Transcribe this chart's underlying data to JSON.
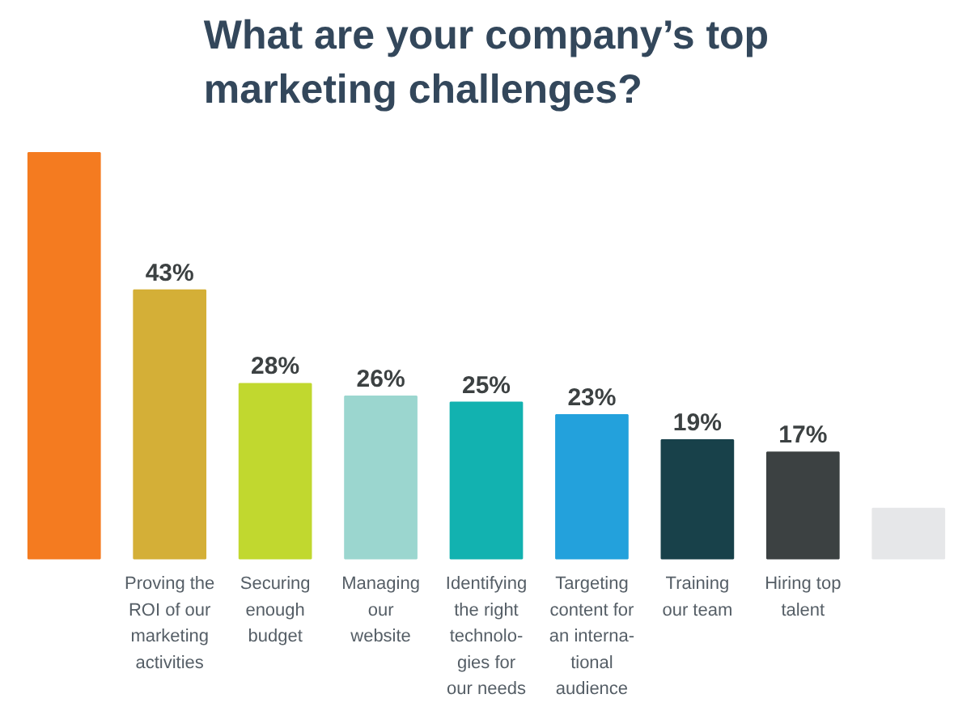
{
  "chart_data": {
    "type": "bar",
    "title": "What are your company’s top\nmarketing challenges?",
    "categories": [
      null,
      "Proving the\nROI of our\nmarketing\nactivities",
      "Securing\nenough\nbudget",
      "Managing\nour\nwebsite",
      "Identifying\nthe right\ntechnolo-\ngies for\nour needs",
      "Targeting\ncontent for\nan interna-\ntional\naudience",
      "Training\nour team",
      "Hiring top\ntalent",
      null
    ],
    "values": [
      65,
      43,
      28,
      26,
      25,
      23,
      19,
      17,
      8
    ],
    "value_labels": [
      null,
      "43%",
      "28%",
      "26%",
      "25%",
      "23%",
      "19%",
      "17%",
      null
    ],
    "colors": [
      "#f47b20",
      "#d4af37",
      "#c1d82f",
      "#9bd6cf",
      "#12b2b0",
      "#23a1dc",
      "#18414a",
      "#3c4142",
      "#e6e7e9"
    ],
    "grid": false
  }
}
